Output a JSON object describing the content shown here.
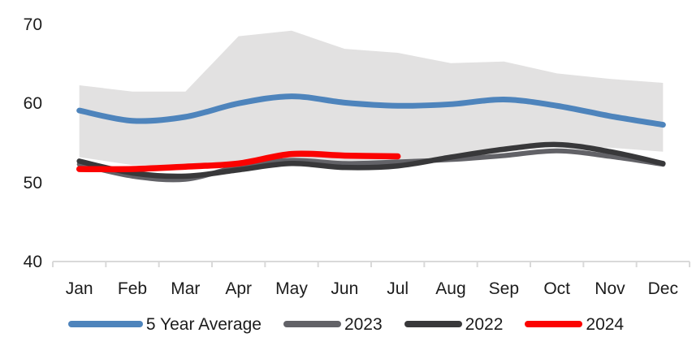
{
  "chart_data": {
    "type": "line",
    "title": "",
    "categories": [
      "Jan",
      "Feb",
      "Mar",
      "Apr",
      "May",
      "Jun",
      "Jul",
      "Aug",
      "Sep",
      "Oct",
      "Nov",
      "Dec"
    ],
    "y_axis": {
      "min": 40,
      "max": 70,
      "tick_labels": [
        "70",
        "60",
        "50",
        "40"
      ],
      "tick_values": [
        70,
        60,
        50,
        40
      ]
    },
    "grid": "off",
    "legend_position": "bottom",
    "band": {
      "name": "5-year-range-band",
      "color": "#E2E1E1",
      "top": [
        62.3,
        61.5,
        61.5,
        68.5,
        69.2,
        66.9,
        66.4,
        65.1,
        65.3,
        63.8,
        63.1,
        62.6
      ],
      "bottom": [
        53.2,
        52.2,
        52.0,
        52.3,
        52.7,
        52.6,
        52.7,
        53.0,
        53.8,
        54.6,
        54.4,
        53.9
      ]
    },
    "series": [
      {
        "name": "5 Year Average",
        "color": "#4E84BC",
        "width": 7,
        "values": [
          59.1,
          57.8,
          58.3,
          60.0,
          60.9,
          60.1,
          59.7,
          59.9,
          60.5,
          59.7,
          58.4,
          57.3
        ]
      },
      {
        "name": "2023",
        "color": "#626267",
        "width": 6,
        "values": [
          52.3,
          50.8,
          50.4,
          52.0,
          52.8,
          52.4,
          52.6,
          52.9,
          53.4,
          54.0,
          53.3,
          52.3
        ]
      },
      {
        "name": "2022",
        "color": "#38383A",
        "width": 6.5,
        "values": [
          52.7,
          51.2,
          50.8,
          51.6,
          52.4,
          51.9,
          52.1,
          53.2,
          54.2,
          54.8,
          53.9,
          52.4
        ]
      },
      {
        "name": "2024",
        "color": "#FB0301",
        "width": 7.5,
        "values": [
          51.7,
          51.7,
          52.0,
          52.4,
          53.6,
          53.4,
          53.3,
          null,
          null,
          null,
          null,
          null
        ]
      }
    ],
    "axis_color": "#D9D9D9",
    "text_color": "#1C1C1C"
  }
}
